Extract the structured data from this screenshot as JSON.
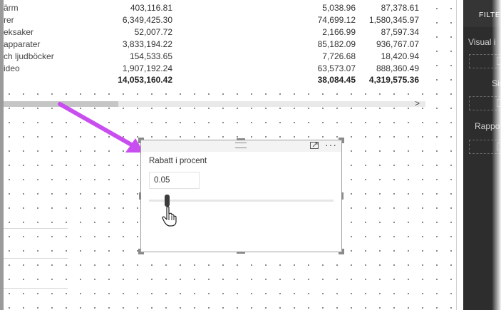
{
  "table": {
    "rows": [
      {
        "name": "ärm",
        "v1": "403,116.81",
        "v2": "5,038.96",
        "v3": "87,378.61"
      },
      {
        "name": "rer",
        "v1": "6,349,425.30",
        "v2": "74,699.12",
        "v3": "1,580,345.97"
      },
      {
        "name": "eksaker",
        "v1": "52,007.72",
        "v2": "2,166.99",
        "v3": "87,597.34"
      },
      {
        "name": "apparater",
        "v1": "3,833,194.22",
        "v2": "85,182.09",
        "v3": "936,767.07"
      },
      {
        "name": "ch ljudböcker",
        "v1": "154,533.65",
        "v2": "7,726.68",
        "v3": "18,420.94"
      },
      {
        "name": "ideo",
        "v1": "1,907,192.24",
        "v2": "63,573.07",
        "v3": "888,360.49"
      }
    ],
    "total": {
      "name": "",
      "v1": "14,053,160.42",
      "v2": "38,084.45",
      "v3": "4,319,575.36"
    },
    "scroll_arrow": ">"
  },
  "slicer": {
    "title": "Rabatt i procent",
    "value": "0.05",
    "slider_fraction": 0.1,
    "more_label": "···"
  },
  "panel": {
    "title": "FILTE",
    "labels": [
      "Visual i",
      "Sid",
      "Rappo"
    ]
  },
  "colors": {
    "arrow": "#c84ef0",
    "panel_bg": "#2d2d2d",
    "slider_thumb": "#3c3c3c"
  },
  "icons": {
    "focus": "focus-mode-icon",
    "more": "more-options-icon",
    "cursor": "hand-pointer-icon"
  }
}
